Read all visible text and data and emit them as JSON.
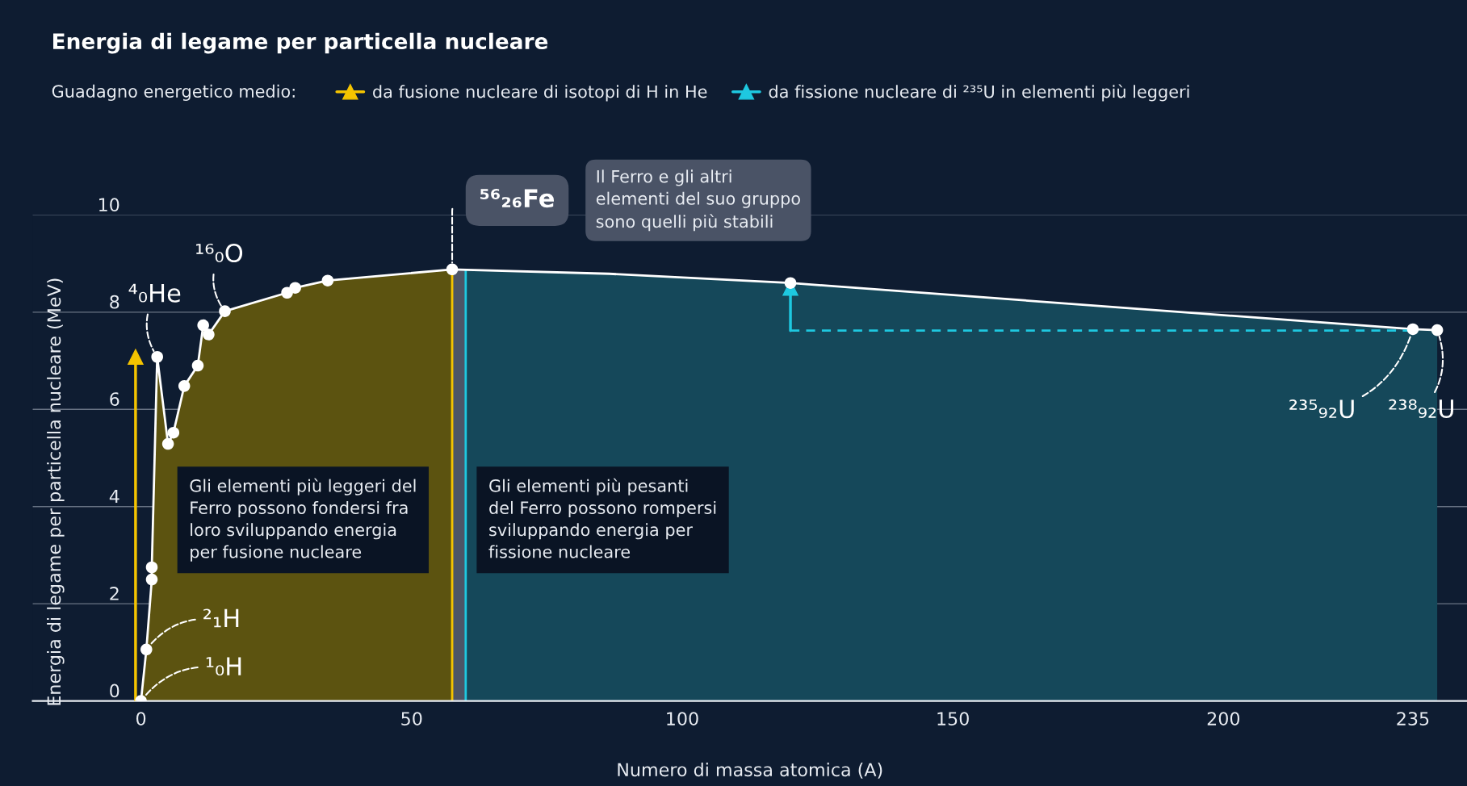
{
  "chart_data": {
    "type": "line",
    "title": "Energia di legame per particella nucleare",
    "legend_title": "Guadagno energetico medio:",
    "xlabel": "Numero di massa atomica (A)",
    "ylabel": "Energia di legame per particella nucleare (MeV)",
    "xlim": [
      -20,
      245
    ],
    "xticks": [
      0,
      50,
      100,
      150,
      200,
      235
    ],
    "ylim": [
      0,
      10
    ],
    "yticks": [
      0,
      2,
      4,
      6,
      8,
      10
    ],
    "grid": "y",
    "legend": "top",
    "series": [
      {
        "color": "#ffffff",
        "marker": "none",
        "x": [
          0,
          1,
          2,
          2,
          3,
          5,
          6,
          8,
          10.5,
          11.5,
          12.5,
          15.5,
          27,
          28.5,
          34.5,
          57.5,
          86.5,
          120,
          235,
          239.5
        ],
        "values": [
          0,
          1.06,
          2.5,
          2.75,
          7.08,
          5.29,
          5.52,
          6.48,
          6.9,
          7.73,
          7.54,
          8.02,
          8.4,
          8.5,
          8.65,
          8.88,
          8.79,
          8.6,
          7.65,
          7.63
        ]
      },
      {
        "type": "scatter",
        "color": "#ffffff",
        "marker": "circle",
        "x": [
          0,
          1,
          2,
          2,
          3,
          5,
          6,
          8,
          10.5,
          11.5,
          12.5,
          15.5,
          27,
          28.5,
          34.5,
          57.5,
          120,
          235,
          239.5
        ],
        "values": [
          0,
          1.06,
          2.5,
          2.75,
          7.08,
          5.29,
          5.52,
          6.48,
          6.9,
          7.73,
          7.54,
          8.02,
          8.4,
          8.5,
          8.65,
          8.88,
          8.6,
          7.65,
          7.63
        ]
      },
      {
        "name": "da fusione nucleare di isotopi di H in He",
        "type": "line",
        "color": "#f5c400",
        "marker": "triangle",
        "x": [
          -1,
          -1
        ],
        "values": [
          0,
          7.08
        ]
      },
      {
        "name": "da fissione nucleare di ²³⁵U in elementi più leggeri",
        "type": "line",
        "color": "#1ec8e0",
        "marker": "triangle",
        "x": [
          120,
          120
        ],
        "values": [
          7.62,
          8.5
        ]
      },
      {
        "type": "line",
        "color": "#1ec8e0",
        "marker": "none",
        "line_style": "dashed",
        "x": [
          120,
          235
        ],
        "values": [
          7.62,
          7.62
        ]
      }
    ],
    "bands": [
      {
        "axis": "x",
        "from": 0,
        "to": 57.5,
        "color": "#5c5310"
      },
      {
        "axis": "x",
        "from": 57.5,
        "to": 60,
        "color": "#4d5566"
      },
      {
        "axis": "x",
        "from": 60,
        "to": 239.5,
        "color": "#15485a"
      }
    ],
    "ref_lines": [
      {
        "axis": "x",
        "value": 57.5,
        "color": "#f5c400"
      },
      {
        "axis": "x",
        "value": 60,
        "color": "#1ec8e0"
      }
    ],
    "annotations": [
      {
        "text": "¹₀H",
        "x": 0,
        "y": 0
      },
      {
        "text": "²₁H",
        "x": 1,
        "y": 1.06
      },
      {
        "text": "⁴₀He",
        "x": 3,
        "y": 7.08
      },
      {
        "text": "¹⁶₀O",
        "x": 15.5,
        "y": 8.02
      },
      {
        "text": "⁵⁶₂₆Fe",
        "x": 57.5,
        "y": 8.88
      },
      {
        "text": "²³⁵₉₂U",
        "x": 235,
        "y": 7.65
      },
      {
        "text": "²³⁸₉₂U",
        "x": 239.5,
        "y": 7.63
      },
      "Il Ferro e gli altri\nelementi del suo gruppo\nsono quelli più stabili",
      "Gli elementi più leggeri del\nFerro possono fondersi fra\nloro sviluppando energia\nper fusione nucleare",
      "Gli elementi più pesanti\ndel Ferro possono rompersi\nsviluppando energia per\nfissione nucleare"
    ]
  }
}
